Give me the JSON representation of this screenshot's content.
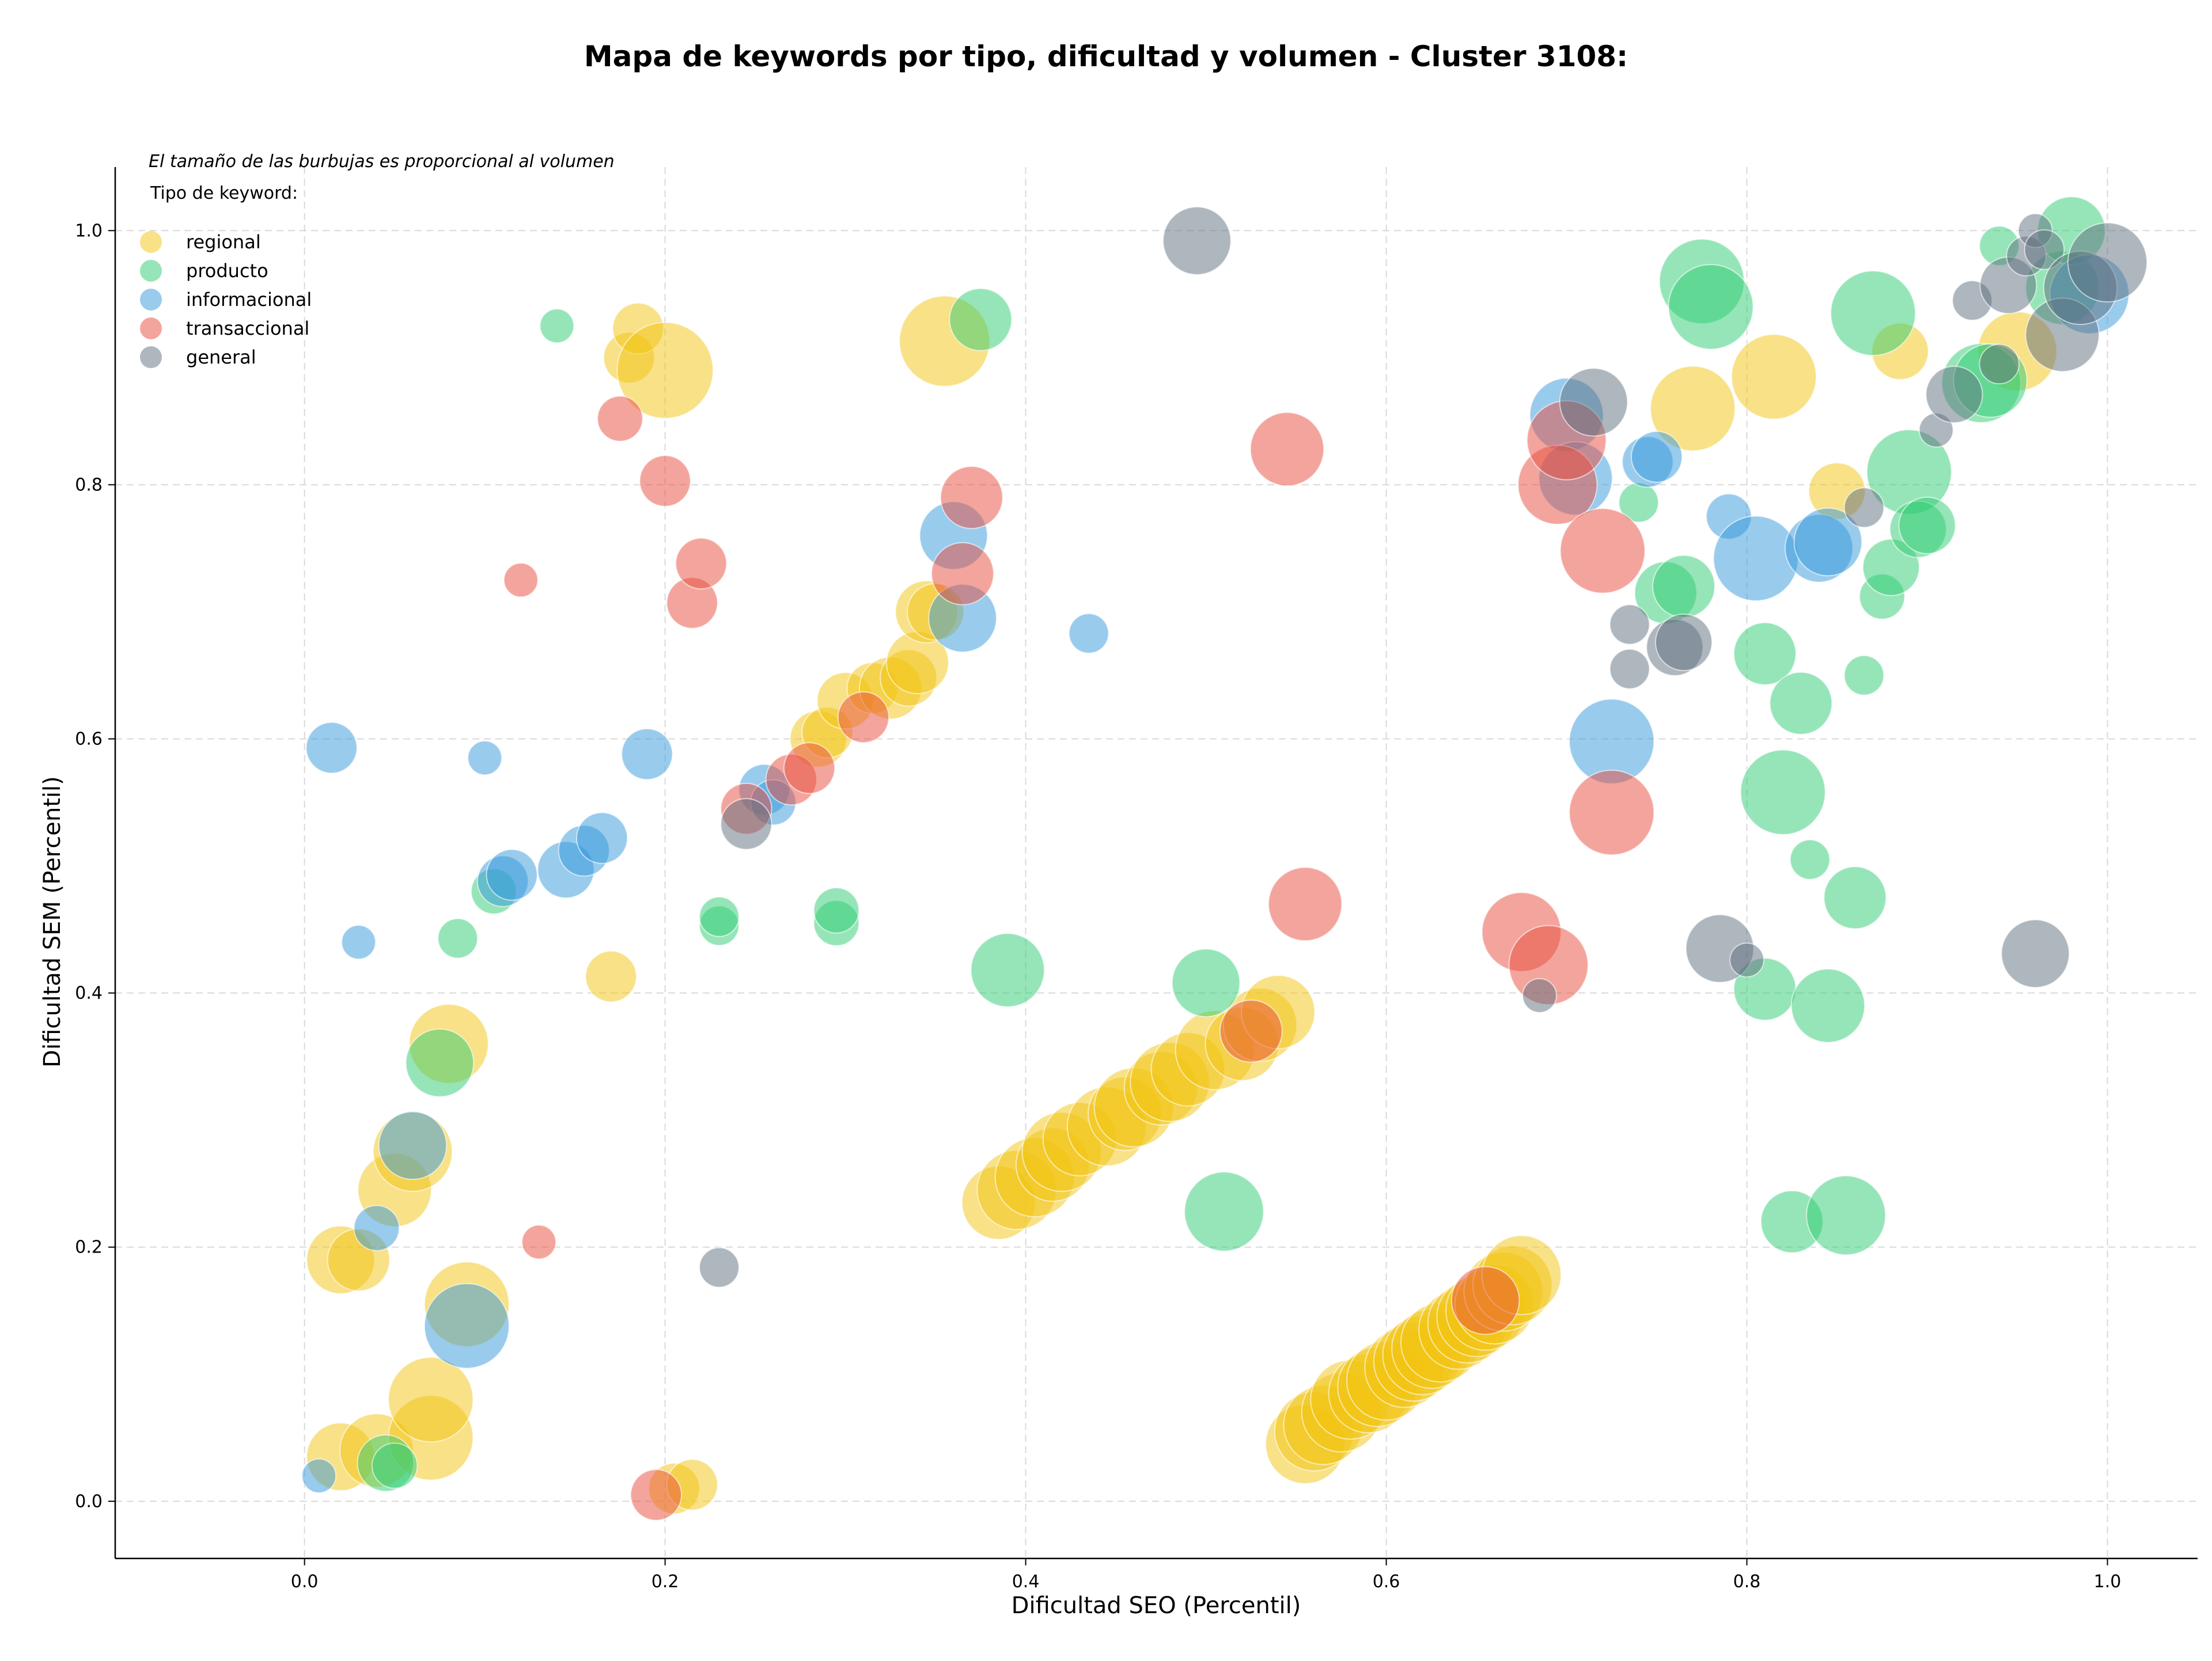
{
  "chart_data": {
    "type": "scatter",
    "title": "Mapa de keywords por tipo, dificultad y volumen - Cluster 3108:",
    "xlabel": "Dificultad SEO (Percentil)",
    "ylabel": "Dificultad SEM (Percentil)",
    "xlim": [
      -0.105,
      1.05
    ],
    "ylim": [
      -0.045,
      1.05
    ],
    "xticks": [
      "0.0",
      "0.2",
      "0.4",
      "0.6",
      "0.8",
      "1.0"
    ],
    "yticks": [
      "0.0",
      "0.2",
      "0.4",
      "0.6",
      "0.8",
      "1.0"
    ],
    "grid": true,
    "size_note": "El tamaño de las burbujas es proporcional al volumen",
    "legend_title": "Tipo de keyword:",
    "legend_position": "top-left",
    "series": [
      {
        "name": "regional",
        "color": "#F1C40F",
        "points": [
          [
            0.02,
            0.19,
            24
          ],
          [
            0.03,
            0.19,
            22
          ],
          [
            0.02,
            0.035,
            24
          ],
          [
            0.04,
            0.04,
            26
          ],
          [
            0.05,
            0.245,
            26
          ],
          [
            0.06,
            0.275,
            28
          ],
          [
            0.07,
            0.05,
            30
          ],
          [
            0.07,
            0.08,
            30
          ],
          [
            0.08,
            0.36,
            28
          ],
          [
            0.09,
            0.155,
            30
          ],
          [
            0.17,
            0.413,
            18
          ],
          [
            0.18,
            0.9,
            18
          ],
          [
            0.185,
            0.923,
            18
          ],
          [
            0.2,
            0.89,
            34
          ],
          [
            0.205,
            0.01,
            18
          ],
          [
            0.215,
            0.013,
            18
          ],
          [
            0.285,
            0.6,
            20
          ],
          [
            0.29,
            0.605,
            18
          ],
          [
            0.3,
            0.63,
            20
          ],
          [
            0.315,
            0.64,
            18
          ],
          [
            0.325,
            0.64,
            22
          ],
          [
            0.335,
            0.648,
            20
          ],
          [
            0.34,
            0.66,
            22
          ],
          [
            0.345,
            0.7,
            22
          ],
          [
            0.35,
            0.7,
            20
          ],
          [
            0.355,
            0.913,
            32
          ],
          [
            0.385,
            0.235,
            26
          ],
          [
            0.395,
            0.245,
            28
          ],
          [
            0.405,
            0.255,
            28
          ],
          [
            0.415,
            0.265,
            26
          ],
          [
            0.42,
            0.275,
            28
          ],
          [
            0.43,
            0.285,
            26
          ],
          [
            0.445,
            0.295,
            28
          ],
          [
            0.455,
            0.305,
            26
          ],
          [
            0.46,
            0.31,
            28
          ],
          [
            0.475,
            0.325,
            26
          ],
          [
            0.48,
            0.33,
            28
          ],
          [
            0.49,
            0.34,
            26
          ],
          [
            0.505,
            0.355,
            28
          ],
          [
            0.52,
            0.36,
            26
          ],
          [
            0.53,
            0.375,
            26
          ],
          [
            0.54,
            0.385,
            26
          ],
          [
            0.555,
            0.045,
            28
          ],
          [
            0.56,
            0.055,
            28
          ],
          [
            0.565,
            0.06,
            28
          ],
          [
            0.575,
            0.07,
            28
          ],
          [
            0.58,
            0.08,
            28
          ],
          [
            0.59,
            0.085,
            28
          ],
          [
            0.595,
            0.09,
            28
          ],
          [
            0.6,
            0.095,
            28
          ],
          [
            0.61,
            0.105,
            28
          ],
          [
            0.615,
            0.11,
            28
          ],
          [
            0.62,
            0.115,
            28
          ],
          [
            0.625,
            0.12,
            28
          ],
          [
            0.63,
            0.125,
            28
          ],
          [
            0.64,
            0.135,
            28
          ],
          [
            0.645,
            0.14,
            28
          ],
          [
            0.65,
            0.145,
            28
          ],
          [
            0.655,
            0.15,
            28
          ],
          [
            0.66,
            0.155,
            28
          ],
          [
            0.665,
            0.165,
            28
          ],
          [
            0.67,
            0.17,
            28
          ],
          [
            0.675,
            0.178,
            28
          ],
          [
            0.77,
            0.86,
            30
          ],
          [
            0.815,
            0.885,
            30
          ],
          [
            0.85,
            0.795,
            20
          ],
          [
            0.885,
            0.905,
            20
          ],
          [
            0.95,
            0.905,
            28
          ]
        ]
      },
      {
        "name": "producto",
        "color": "#2ECC71",
        "points": [
          [
            0.045,
            0.03,
            20
          ],
          [
            0.05,
            0.028,
            16
          ],
          [
            0.075,
            0.345,
            24
          ],
          [
            0.085,
            0.443,
            14
          ],
          [
            0.105,
            0.48,
            16
          ],
          [
            0.14,
            0.925,
            12
          ],
          [
            0.23,
            0.453,
            14
          ],
          [
            0.23,
            0.46,
            14
          ],
          [
            0.295,
            0.455,
            16
          ],
          [
            0.295,
            0.465,
            16
          ],
          [
            0.375,
            0.93,
            22
          ],
          [
            0.39,
            0.418,
            26
          ],
          [
            0.5,
            0.408,
            24
          ],
          [
            0.51,
            0.228,
            28
          ],
          [
            0.74,
            0.786,
            14
          ],
          [
            0.755,
            0.715,
            22
          ],
          [
            0.765,
            0.72,
            22
          ],
          [
            0.775,
            0.96,
            30
          ],
          [
            0.78,
            0.94,
            30
          ],
          [
            0.81,
            0.667,
            22
          ],
          [
            0.81,
            0.403,
            22
          ],
          [
            0.82,
            0.558,
            30
          ],
          [
            0.825,
            0.22,
            22
          ],
          [
            0.83,
            0.628,
            22
          ],
          [
            0.835,
            0.505,
            14
          ],
          [
            0.845,
            0.39,
            26
          ],
          [
            0.855,
            0.225,
            28
          ],
          [
            0.86,
            0.475,
            22
          ],
          [
            0.865,
            0.65,
            14
          ],
          [
            0.87,
            0.935,
            30
          ],
          [
            0.875,
            0.712,
            16
          ],
          [
            0.88,
            0.735,
            20
          ],
          [
            0.89,
            0.81,
            30
          ],
          [
            0.895,
            0.765,
            20
          ],
          [
            0.9,
            0.768,
            20
          ],
          [
            0.93,
            0.88,
            28
          ],
          [
            0.935,
            0.882,
            26
          ],
          [
            0.94,
            0.988,
            14
          ],
          [
            0.975,
            0.955,
            26
          ],
          [
            0.98,
            1.0,
            24
          ]
        ]
      },
      {
        "name": "informacional",
        "color": "#3498DB",
        "points": [
          [
            0.008,
            0.02,
            12
          ],
          [
            0.015,
            0.593,
            18
          ],
          [
            0.03,
            0.44,
            12
          ],
          [
            0.04,
            0.215,
            16
          ],
          [
            0.06,
            0.28,
            24
          ],
          [
            0.09,
            0.138,
            30
          ],
          [
            0.1,
            0.585,
            12
          ],
          [
            0.11,
            0.488,
            18
          ],
          [
            0.115,
            0.493,
            18
          ],
          [
            0.145,
            0.497,
            20
          ],
          [
            0.155,
            0.512,
            18
          ],
          [
            0.165,
            0.522,
            18
          ],
          [
            0.19,
            0.588,
            18
          ],
          [
            0.255,
            0.56,
            18
          ],
          [
            0.26,
            0.55,
            16
          ],
          [
            0.36,
            0.76,
            24
          ],
          [
            0.365,
            0.695,
            24
          ],
          [
            0.435,
            0.683,
            14
          ],
          [
            0.7,
            0.855,
            26
          ],
          [
            0.705,
            0.805,
            26
          ],
          [
            0.725,
            0.598,
            30
          ],
          [
            0.745,
            0.818,
            18
          ],
          [
            0.75,
            0.822,
            18
          ],
          [
            0.79,
            0.775,
            16
          ],
          [
            0.805,
            0.742,
            30
          ],
          [
            0.84,
            0.75,
            24
          ],
          [
            0.845,
            0.755,
            24
          ],
          [
            0.99,
            0.95,
            28
          ]
        ]
      },
      {
        "name": "transaccional",
        "color": "#E74C3C",
        "points": [
          [
            0.12,
            0.725,
            12
          ],
          [
            0.13,
            0.204,
            12
          ],
          [
            0.175,
            0.852,
            16
          ],
          [
            0.195,
            0.005,
            18
          ],
          [
            0.2,
            0.803,
            18
          ],
          [
            0.215,
            0.707,
            18
          ],
          [
            0.22,
            0.738,
            18
          ],
          [
            0.245,
            0.545,
            18
          ],
          [
            0.27,
            0.568,
            18
          ],
          [
            0.28,
            0.577,
            18
          ],
          [
            0.31,
            0.617,
            18
          ],
          [
            0.365,
            0.73,
            22
          ],
          [
            0.37,
            0.79,
            22
          ],
          [
            0.525,
            0.37,
            22
          ],
          [
            0.545,
            0.828,
            26
          ],
          [
            0.555,
            0.47,
            26
          ],
          [
            0.655,
            0.158,
            24
          ],
          [
            0.675,
            0.448,
            28
          ],
          [
            0.69,
            0.422,
            28
          ],
          [
            0.695,
            0.8,
            28
          ],
          [
            0.7,
            0.835,
            28
          ],
          [
            0.72,
            0.748,
            30
          ],
          [
            0.725,
            0.542,
            30
          ]
        ]
      },
      {
        "name": "general",
        "color": "#5D6D7E",
        "points": [
          [
            0.23,
            0.184,
            14
          ],
          [
            0.245,
            0.533,
            18
          ],
          [
            0.495,
            0.992,
            24
          ],
          [
            0.685,
            0.398,
            12
          ],
          [
            0.715,
            0.865,
            24
          ],
          [
            0.735,
            0.69,
            14
          ],
          [
            0.735,
            0.655,
            14
          ],
          [
            0.76,
            0.672,
            20
          ],
          [
            0.765,
            0.676,
            20
          ],
          [
            0.785,
            0.435,
            24
          ],
          [
            0.8,
            0.426,
            12
          ],
          [
            0.865,
            0.782,
            14
          ],
          [
            0.905,
            0.843,
            12
          ],
          [
            0.915,
            0.871,
            20
          ],
          [
            0.925,
            0.945,
            14
          ],
          [
            0.94,
            0.895,
            14
          ],
          [
            0.945,
            0.957,
            20
          ],
          [
            0.955,
            0.98,
            14
          ],
          [
            0.96,
            1.0,
            12
          ],
          [
            0.96,
            0.431,
            24
          ],
          [
            0.965,
            0.985,
            14
          ],
          [
            0.975,
            0.918,
            26
          ],
          [
            0.985,
            0.955,
            26
          ],
          [
            1.0,
            0.975,
            28
          ]
        ]
      }
    ]
  }
}
